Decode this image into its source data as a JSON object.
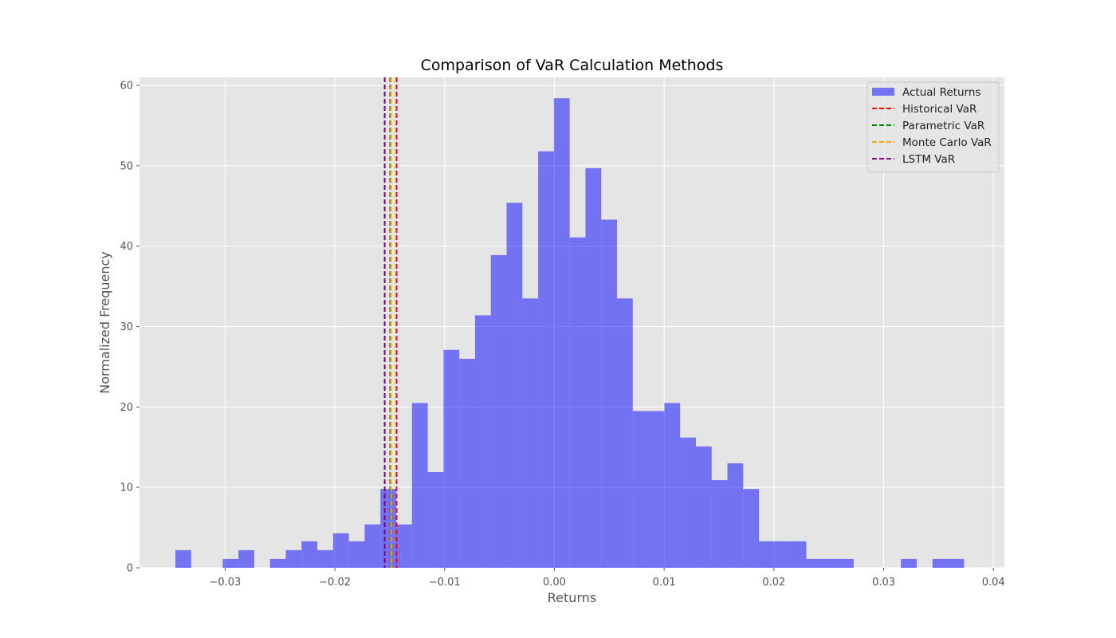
{
  "chart_data": {
    "type": "bar",
    "title": "Comparison of VaR Calculation Methods",
    "xlabel": "Returns",
    "ylabel": "Normalized Frequency",
    "xlim": [
      -0.0378,
      0.041
    ],
    "ylim": [
      0,
      61
    ],
    "grid": true,
    "background_color": "#e5e5e5",
    "grid_color": "#ffffff",
    "x_ticks": [
      {
        "value": -0.03,
        "label": "−0.03"
      },
      {
        "value": -0.02,
        "label": "−0.02"
      },
      {
        "value": -0.01,
        "label": "−0.01"
      },
      {
        "value": 0.0,
        "label": "0.00"
      },
      {
        "value": 0.01,
        "label": "0.01"
      },
      {
        "value": 0.02,
        "label": "0.02"
      },
      {
        "value": 0.03,
        "label": "0.03"
      },
      {
        "value": 0.04,
        "label": "0.04"
      }
    ],
    "y_ticks": [
      {
        "value": 0,
        "label": "0"
      },
      {
        "value": 10,
        "label": "10"
      },
      {
        "value": 20,
        "label": "20"
      },
      {
        "value": 30,
        "label": "30"
      },
      {
        "value": 40,
        "label": "40"
      },
      {
        "value": 50,
        "label": "50"
      },
      {
        "value": 60,
        "label": "60"
      }
    ],
    "histogram": {
      "name": "Actual Returns",
      "color": "#0000ff",
      "opacity": 0.5,
      "bin_start": -0.03453,
      "bin_width": 0.001437,
      "values": [
        2.2,
        0,
        0,
        1.1,
        2.2,
        0,
        1.1,
        2.2,
        3.3,
        2.2,
        4.3,
        3.3,
        5.4,
        9.8,
        5.4,
        20.5,
        11.9,
        27.1,
        26.0,
        31.4,
        38.9,
        45.4,
        33.5,
        51.8,
        58.4,
        41.1,
        49.7,
        43.3,
        33.5,
        19.5,
        19.5,
        20.5,
        16.2,
        15.1,
        10.9,
        13.0,
        9.8,
        3.3,
        3.3,
        3.3,
        1.1,
        1.1,
        1.1,
        0,
        0,
        0,
        1.1,
        0,
        1.1,
        1.1
      ]
    },
    "var_lines": [
      {
        "name": "Historical VaR",
        "value": -0.01438,
        "color": "#ff0000"
      },
      {
        "name": "Parametric VaR",
        "value": -0.01496,
        "color": "#008000"
      },
      {
        "name": "Monte Carlo VaR",
        "value": -0.01489,
        "color": "#ffa500"
      },
      {
        "name": "LSTM VaR",
        "value": -0.01546,
        "color": "#800080"
      }
    ],
    "legend": {
      "position": "top-right",
      "entries": [
        "Actual Returns",
        "Historical VaR",
        "Parametric VaR",
        "Monte Carlo VaR",
        "LSTM VaR"
      ]
    }
  }
}
